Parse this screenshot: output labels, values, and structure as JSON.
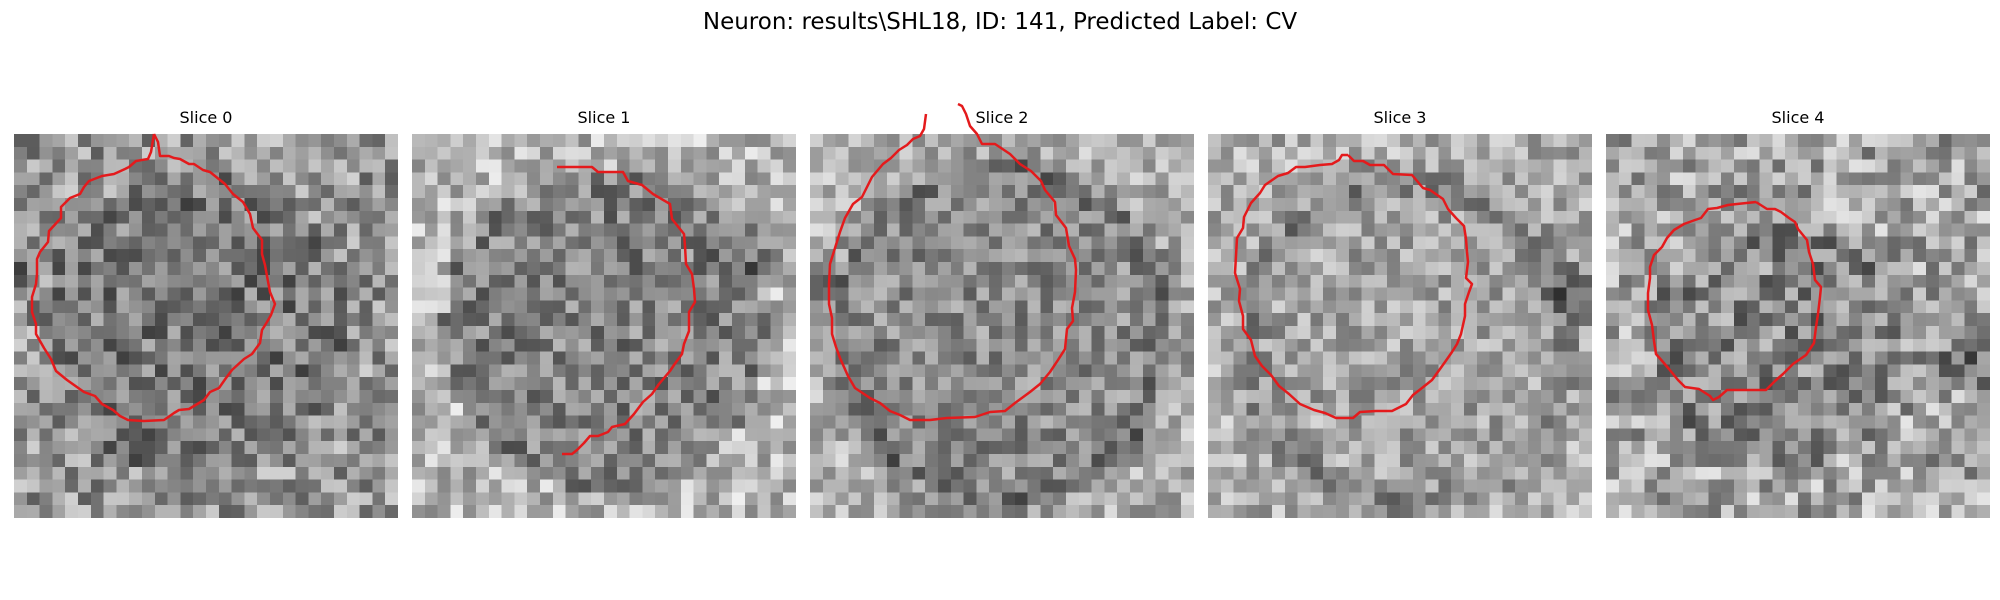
{
  "figure": {
    "title": "Neuron: results\\SHL18, ID: 141, Predicted Label: CV"
  },
  "panels": [
    {
      "label": "Slice 0",
      "contour": [
        [
          140,
          0
        ],
        [
          144,
          8
        ],
        [
          146,
          22
        ],
        [
          155,
          22
        ],
        [
          160,
          24
        ],
        [
          166,
          25
        ],
        [
          175,
          30
        ],
        [
          180,
          30
        ],
        [
          189,
          36
        ],
        [
          196,
          38
        ],
        [
          211,
          50
        ],
        [
          219,
          60
        ],
        [
          229,
          68
        ],
        [
          236,
          80
        ],
        [
          239,
          94
        ],
        [
          248,
          106
        ],
        [
          248,
          120
        ],
        [
          251,
          131
        ],
        [
          253,
          142
        ],
        [
          256,
          158
        ],
        [
          261,
          170
        ],
        [
          257,
          181
        ],
        [
          253,
          188
        ],
        [
          248,
          196
        ],
        [
          246,
          209
        ],
        [
          238,
          220
        ],
        [
          230,
          225
        ],
        [
          218,
          236
        ],
        [
          212,
          244
        ],
        [
          205,
          254
        ],
        [
          196,
          258
        ],
        [
          190,
          266
        ],
        [
          175,
          275
        ],
        [
          165,
          276
        ],
        [
          160,
          279
        ],
        [
          150,
          286
        ],
        [
          130,
          287
        ],
        [
          114,
          286
        ],
        [
          106,
          282
        ],
        [
          99,
          276
        ],
        [
          88,
          270
        ],
        [
          81,
          262
        ],
        [
          70,
          258
        ],
        [
          53,
          246
        ],
        [
          42,
          237
        ],
        [
          37,
          225
        ],
        [
          30,
          214
        ],
        [
          22,
          200
        ],
        [
          22,
          190
        ],
        [
          18,
          178
        ],
        [
          18,
          163
        ],
        [
          22,
          150
        ],
        [
          23,
          140
        ],
        [
          23,
          125
        ],
        [
          26,
          118
        ],
        [
          34,
          108
        ],
        [
          35,
          97
        ],
        [
          47,
          84
        ],
        [
          47,
          73
        ],
        [
          56,
          64
        ],
        [
          66,
          60
        ],
        [
          70,
          53
        ],
        [
          75,
          47
        ],
        [
          88,
          42
        ],
        [
          100,
          40
        ],
        [
          111,
          35
        ],
        [
          115,
          33
        ],
        [
          122,
          27
        ],
        [
          134,
          25
        ],
        [
          137,
          18
        ],
        [
          140,
          0
        ]
      ]
    },
    {
      "label": "Slice 1",
      "contour": [
        [
          145,
          33
        ],
        [
          150,
          33
        ],
        [
          180,
          33
        ],
        [
          186,
          38
        ],
        [
          211,
          38
        ],
        [
          216,
          47
        ],
        [
          230,
          51
        ],
        [
          241,
          60
        ],
        [
          258,
          70
        ],
        [
          260,
          85
        ],
        [
          272,
          100
        ],
        [
          273,
          112
        ],
        [
          274,
          130
        ],
        [
          280,
          140
        ],
        [
          282,
          155
        ],
        [
          283,
          168
        ],
        [
          277,
          178
        ],
        [
          277,
          197
        ],
        [
          272,
          210
        ],
        [
          270,
          220
        ],
        [
          262,
          231
        ],
        [
          258,
          237
        ],
        [
          247,
          250
        ],
        [
          240,
          260
        ],
        [
          231,
          268
        ],
        [
          222,
          280
        ],
        [
          213,
          290
        ],
        [
          200,
          293
        ],
        [
          196,
          298
        ],
        [
          186,
          302
        ],
        [
          178,
          302
        ],
        [
          172,
          309
        ],
        [
          165,
          316
        ],
        [
          160,
          320
        ],
        [
          150,
          320
        ]
      ]
    },
    {
      "label": "Slice 2",
      "contour": [
        [
          148,
          -30
        ],
        [
          152,
          -28
        ],
        [
          156,
          -20
        ],
        [
          160,
          -8
        ],
        [
          167,
          0
        ],
        [
          172,
          10
        ],
        [
          185,
          10
        ],
        [
          200,
          20
        ],
        [
          210,
          30
        ],
        [
          221,
          37
        ],
        [
          231,
          47
        ],
        [
          235,
          56
        ],
        [
          245,
          68
        ],
        [
          246,
          81
        ],
        [
          256,
          94
        ],
        [
          259,
          112
        ],
        [
          265,
          125
        ],
        [
          266,
          136
        ],
        [
          265,
          158
        ],
        [
          262,
          174
        ],
        [
          263,
          187
        ],
        [
          257,
          195
        ],
        [
          255,
          215
        ],
        [
          248,
          226
        ],
        [
          240,
          238
        ],
        [
          230,
          250
        ],
        [
          220,
          258
        ],
        [
          205,
          269
        ],
        [
          195,
          277
        ],
        [
          180,
          278
        ],
        [
          165,
          283
        ],
        [
          137,
          284
        ],
        [
          120,
          286
        ],
        [
          100,
          286
        ],
        [
          90,
          281
        ],
        [
          80,
          277
        ],
        [
          70,
          269
        ],
        [
          60,
          264
        ],
        [
          45,
          254
        ],
        [
          38,
          242
        ],
        [
          30,
          224
        ],
        [
          26,
          213
        ],
        [
          22,
          200
        ],
        [
          22,
          184
        ],
        [
          19,
          170
        ],
        [
          19,
          150
        ],
        [
          20,
          130
        ],
        [
          25,
          114
        ],
        [
          30,
          98
        ],
        [
          35,
          84
        ],
        [
          43,
          70
        ],
        [
          52,
          63
        ],
        [
          57,
          53
        ],
        [
          62,
          43
        ],
        [
          73,
          30
        ],
        [
          81,
          24
        ],
        [
          89,
          16
        ],
        [
          97,
          11
        ],
        [
          103,
          5
        ],
        [
          110,
          2
        ],
        [
          114,
          -5
        ],
        [
          116,
          -20
        ]
      ]
    },
    {
      "label": "Slice 3",
      "contour": [
        [
          140,
          21
        ],
        [
          146,
          27
        ],
        [
          155,
          27
        ],
        [
          162,
          31
        ],
        [
          176,
          31
        ],
        [
          185,
          40
        ],
        [
          204,
          41
        ],
        [
          215,
          54
        ],
        [
          222,
          56
        ],
        [
          235,
          65
        ],
        [
          240,
          75
        ],
        [
          248,
          84
        ],
        [
          256,
          92
        ],
        [
          258,
          105
        ],
        [
          259,
          118
        ],
        [
          260,
          128
        ],
        [
          258,
          144
        ],
        [
          264,
          150
        ],
        [
          261,
          158
        ],
        [
          257,
          170
        ],
        [
          257,
          182
        ],
        [
          253,
          200
        ],
        [
          249,
          210
        ],
        [
          244,
          218
        ],
        [
          237,
          228
        ],
        [
          232,
          235
        ],
        [
          224,
          246
        ],
        [
          214,
          254
        ],
        [
          205,
          261
        ],
        [
          198,
          270
        ],
        [
          184,
          277
        ],
        [
          168,
          277
        ],
        [
          152,
          278
        ],
        [
          145,
          284
        ],
        [
          128,
          284
        ],
        [
          117,
          279
        ],
        [
          106,
          276
        ],
        [
          92,
          270
        ],
        [
          81,
          260
        ],
        [
          71,
          252
        ],
        [
          63,
          241
        ],
        [
          54,
          232
        ],
        [
          47,
          222
        ],
        [
          43,
          206
        ],
        [
          35,
          195
        ],
        [
          35,
          182
        ],
        [
          31,
          167
        ],
        [
          32,
          155
        ],
        [
          27,
          139
        ],
        [
          28,
          122
        ],
        [
          29,
          104
        ],
        [
          35,
          94
        ],
        [
          36,
          83
        ],
        [
          43,
          69
        ],
        [
          52,
          59
        ],
        [
          57,
          51
        ],
        [
          70,
          42
        ],
        [
          80,
          39
        ],
        [
          88,
          33
        ],
        [
          97,
          33
        ],
        [
          112,
          31
        ],
        [
          124,
          30
        ],
        [
          131,
          26
        ],
        [
          134,
          21
        ],
        [
          140,
          21
        ]
      ]
    },
    {
      "label": "Slice 4",
      "contour": [
        [
          150,
          68
        ],
        [
          161,
          75
        ],
        [
          169,
          75
        ],
        [
          175,
          78
        ],
        [
          183,
          84
        ],
        [
          189,
          88
        ],
        [
          192,
          95
        ],
        [
          201,
          106
        ],
        [
          203,
          118
        ],
        [
          207,
          130
        ],
        [
          209,
          146
        ],
        [
          215,
          153
        ],
        [
          214,
          163
        ],
        [
          212,
          180
        ],
        [
          210,
          193
        ],
        [
          208,
          209
        ],
        [
          200,
          221
        ],
        [
          187,
          230
        ],
        [
          177,
          240
        ],
        [
          169,
          247
        ],
        [
          160,
          256
        ],
        [
          145,
          256
        ],
        [
          130,
          256
        ],
        [
          121,
          256
        ],
        [
          113,
          263
        ],
        [
          107,
          266
        ],
        [
          104,
          262
        ],
        [
          93,
          255
        ],
        [
          79,
          253
        ],
        [
          72,
          246
        ],
        [
          63,
          235
        ],
        [
          57,
          228
        ],
        [
          50,
          220
        ],
        [
          48,
          207
        ],
        [
          46,
          191
        ],
        [
          42,
          176
        ],
        [
          42,
          159
        ],
        [
          44,
          144
        ],
        [
          44,
          133
        ],
        [
          48,
          121
        ],
        [
          56,
          113
        ],
        [
          61,
          104
        ],
        [
          68,
          96
        ],
        [
          78,
          90
        ],
        [
          89,
          86
        ],
        [
          95,
          84
        ],
        [
          102,
          75
        ],
        [
          111,
          74
        ],
        [
          122,
          71
        ],
        [
          131,
          70
        ],
        [
          150,
          68
        ]
      ]
    }
  ],
  "colors": {
    "contour": "#e41a1c",
    "background": "#ffffff",
    "title": "#000000"
  }
}
